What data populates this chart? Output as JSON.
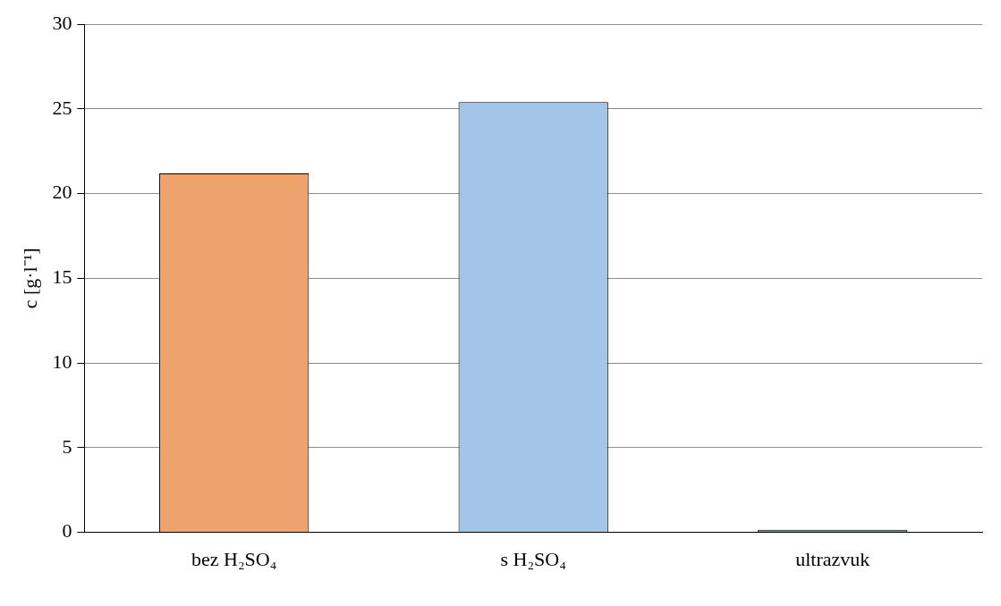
{
  "chart_data": {
    "type": "bar",
    "ylabel": "c [g·l⁻¹]",
    "categories": [
      "bez H₂SO₄",
      "s H₂SO₄",
      "ultrazvuk"
    ],
    "values": [
      21.2,
      25.4,
      0.15
    ],
    "colors": [
      "#eea36e",
      "#a3c6e8",
      "#7a9a5a"
    ],
    "ylim": [
      0,
      30
    ],
    "yticks": [
      0,
      5,
      10,
      15,
      20,
      25,
      30
    ],
    "grid": "y",
    "legend": false
  }
}
